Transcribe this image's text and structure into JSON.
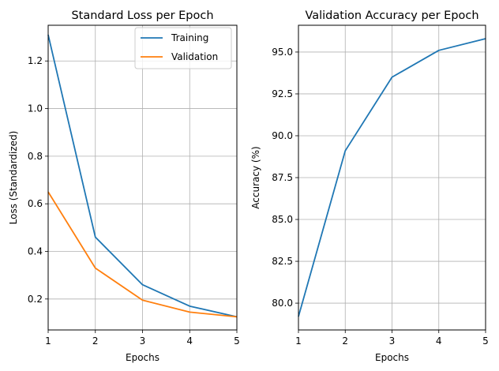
{
  "chart_data": [
    {
      "type": "line",
      "title": "Standard Loss per Epoch",
      "xlabel": "Epochs",
      "ylabel": "Loss (Standardized)",
      "x": [
        1,
        2,
        3,
        4,
        5
      ],
      "xlim": [
        1,
        5
      ],
      "ylim": [
        0.07,
        1.35
      ],
      "xticks": [
        "1",
        "2",
        "3",
        "4",
        "5"
      ],
      "yticks": [
        "0.2",
        "0.4",
        "0.6",
        "0.8",
        "1.0",
        "1.2"
      ],
      "grid": true,
      "legend": "top-right",
      "series": [
        {
          "name": "Training",
          "color": "#1f77b4",
          "values": [
            1.31,
            0.46,
            0.26,
            0.17,
            0.125
          ]
        },
        {
          "name": "Validation",
          "color": "#ff7f0e",
          "values": [
            0.65,
            0.33,
            0.195,
            0.145,
            0.125
          ]
        }
      ]
    },
    {
      "type": "line",
      "title": "Validation Accuracy per Epoch",
      "xlabel": "Epochs",
      "ylabel": "Accuracy (%)",
      "x": [
        1,
        2,
        3,
        4,
        5
      ],
      "xlim": [
        1,
        5
      ],
      "ylim": [
        78.4,
        96.6
      ],
      "xticks": [
        "1",
        "2",
        "3",
        "4",
        "5"
      ],
      "yticks": [
        "80.0",
        "82.5",
        "85.0",
        "87.5",
        "90.0",
        "92.5",
        "95.0"
      ],
      "grid": true,
      "series": [
        {
          "color": "#1f77b4",
          "values": [
            79.2,
            89.1,
            93.5,
            95.1,
            95.8
          ]
        }
      ]
    }
  ]
}
